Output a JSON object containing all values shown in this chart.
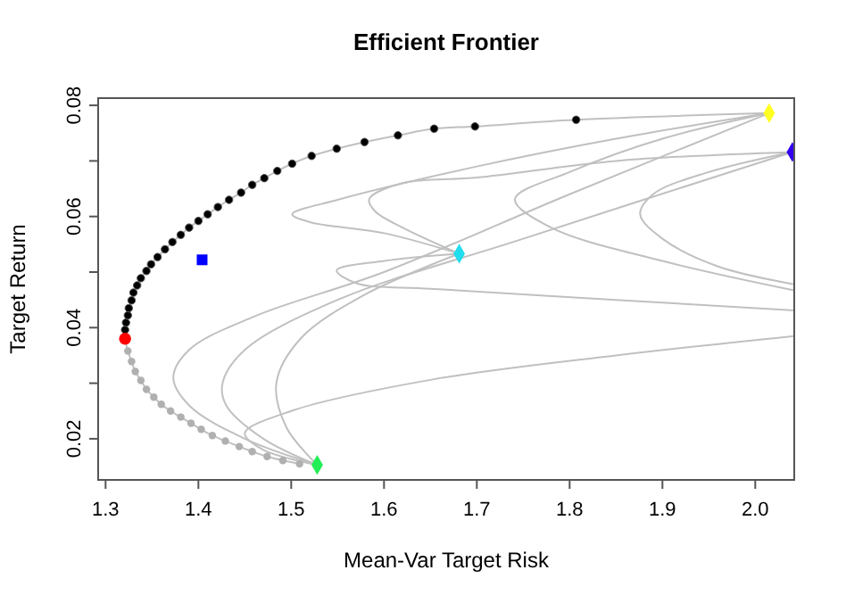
{
  "chart_data": {
    "type": "scatter",
    "title": "Efficient Frontier",
    "xlabel": "Mean-Var Target Risk",
    "ylabel": "Target Return",
    "xlim": [
      1.292,
      2.042
    ],
    "ylim": [
      0.0126,
      0.0813
    ],
    "xticks": [
      1.3,
      1.4,
      1.5,
      1.6,
      1.7,
      1.8,
      1.9,
      {
        "value": 2,
        "label": "2.0"
      }
    ],
    "yticks": [
      0.02,
      {
        "value": 0.03,
        "label": null
      },
      0.04,
      {
        "value": 0.05,
        "label": null
      },
      0.06,
      {
        "value": 0.07,
        "label": null
      },
      0.08
    ],
    "grid": false,
    "series": [
      {
        "type": "line",
        "color": "#c0c0c0",
        "marker": "none",
        "x": [
          1.528,
          1.45,
          1.39,
          1.373,
          1.39,
          1.46,
          1.6,
          1.8,
          2.015
        ],
        "values": [
          0.0153,
          0.02,
          0.026,
          0.031,
          0.036,
          0.042,
          0.05,
          0.064,
          0.0786
        ]
      },
      {
        "type": "line",
        "color": "#c0c0c0",
        "marker": "none",
        "x": [
          1.528,
          1.47,
          1.43,
          1.426,
          1.45,
          1.55,
          1.75,
          2.04
        ],
        "values": [
          0.0153,
          0.02,
          0.026,
          0.03,
          0.036,
          0.045,
          0.056,
          0.0716
        ]
      },
      {
        "type": "line",
        "color": "#c0c0c0",
        "marker": "none",
        "x": [
          1.528,
          1.495,
          1.484,
          1.51,
          1.58,
          1.681
        ],
        "values": [
          0.0153,
          0.022,
          0.03,
          0.038,
          0.046,
          0.0533
        ]
      },
      {
        "type": "line",
        "color": "#c0c0c0",
        "marker": "none",
        "x": [
          1.528,
          1.47,
          1.45,
          1.5,
          1.65,
          1.85,
          2.042
        ],
        "values": [
          0.0153,
          0.018,
          0.021,
          0.025,
          0.0306,
          0.035,
          0.0385
        ]
      },
      {
        "type": "line",
        "color": "#c0c0c0",
        "marker": "none",
        "x": [
          1.681,
          1.6,
          1.549,
          1.57,
          1.65,
          1.85,
          2.042
        ],
        "values": [
          0.0533,
          0.052,
          0.0503,
          0.048,
          0.047,
          0.045,
          0.0431
        ]
      },
      {
        "type": "line",
        "color": "#c0c0c0",
        "marker": "none",
        "x": [
          1.681,
          1.6,
          1.52,
          1.501,
          1.55,
          1.7,
          1.85,
          2.015
        ],
        "values": [
          0.0533,
          0.057,
          0.059,
          0.0604,
          0.063,
          0.069,
          0.074,
          0.0786
        ]
      },
      {
        "type": "line",
        "color": "#c0c0c0",
        "marker": "none",
        "x": [
          1.681,
          1.62,
          1.59,
          1.584,
          1.62,
          1.7,
          1.85,
          2.04
        ],
        "values": [
          0.0533,
          0.058,
          0.061,
          0.0631,
          0.066,
          0.067,
          0.07,
          0.0716
        ]
      },
      {
        "type": "line",
        "color": "#c0c0c0",
        "marker": "none",
        "x": [
          2.015,
          1.9,
          1.8,
          1.741,
          1.78,
          1.9,
          2.042
        ],
        "values": [
          0.0786,
          0.074,
          0.068,
          0.0631,
          0.058,
          0.052,
          0.0467
        ]
      },
      {
        "type": "line",
        "color": "#c0c0c0",
        "marker": "none",
        "x": [
          2.04,
          1.95,
          1.89,
          1.876,
          1.9,
          1.96,
          2.042
        ],
        "values": [
          0.0716,
          0.068,
          0.064,
          0.0604,
          0.056,
          0.051,
          0.0478
        ]
      },
      {
        "type": "line",
        "color": "#c0c0c0",
        "marker": "none",
        "x": [
          1.509,
          1.491,
          1.474,
          1.458,
          1.444,
          1.429,
          1.415,
          1.403,
          1.392,
          1.381,
          1.37,
          1.36,
          1.352,
          1.344,
          1.338,
          1.332,
          1.328,
          1.324,
          1.321,
          1.321,
          1.322,
          1.324,
          1.325,
          1.328,
          1.33,
          1.334,
          1.338,
          1.344,
          1.349,
          1.356,
          1.364,
          1.372,
          1.381,
          1.39,
          1.4,
          1.41,
          1.421,
          1.433,
          1.446,
          1.458,
          1.471,
          1.485,
          1.501,
          1.522,
          1.549,
          1.579,
          1.615,
          1.654,
          1.698,
          1.807,
          2.015
        ],
        "values": [
          0.0155,
          0.0161,
          0.0168,
          0.0177,
          0.0186,
          0.0196,
          0.0206,
          0.0217,
          0.0228,
          0.0239,
          0.025,
          0.0262,
          0.0275,
          0.0289,
          0.0305,
          0.0321,
          0.0339,
          0.0358,
          0.038,
          0.0396,
          0.0409,
          0.0422,
          0.0435,
          0.0449,
          0.0463,
          0.0476,
          0.0489,
          0.0502,
          0.0514,
          0.0527,
          0.0541,
          0.0554,
          0.0567,
          0.058,
          0.0592,
          0.0604,
          0.0617,
          0.063,
          0.0643,
          0.0657,
          0.0669,
          0.0682,
          0.0695,
          0.0709,
          0.0722,
          0.0734,
          0.0746,
          0.0758,
          0.0762,
          0.0774,
          0.0786
        ]
      },
      {
        "color": "#b0b0b0",
        "marker": "circle",
        "x": [
          1.509,
          1.491,
          1.474,
          1.458,
          1.444,
          1.429,
          1.415,
          1.403,
          1.392,
          1.381,
          1.37,
          1.36,
          1.352,
          1.344,
          1.338,
          1.332,
          1.328,
          1.324
        ],
        "values": [
          0.0155,
          0.0161,
          0.0168,
          0.0177,
          0.0186,
          0.0196,
          0.0206,
          0.0217,
          0.0228,
          0.0239,
          0.025,
          0.0262,
          0.0275,
          0.0289,
          0.0305,
          0.0321,
          0.0339,
          0.0358
        ]
      },
      {
        "color": "#000000",
        "marker": "circle",
        "x": [
          1.321,
          1.322,
          1.324,
          1.325,
          1.328,
          1.33,
          1.334,
          1.338,
          1.344,
          1.349,
          1.356,
          1.364,
          1.372,
          1.381,
          1.39,
          1.4,
          1.41,
          1.421,
          1.433,
          1.446,
          1.458,
          1.471,
          1.485,
          1.501,
          1.522,
          1.549,
          1.579,
          1.615,
          1.654,
          1.698,
          1.807
        ],
        "values": [
          0.0396,
          0.0409,
          0.0422,
          0.0435,
          0.0449,
          0.0463,
          0.0476,
          0.0489,
          0.0502,
          0.0514,
          0.0527,
          0.0541,
          0.0554,
          0.0567,
          0.058,
          0.0592,
          0.0604,
          0.0617,
          0.063,
          0.0643,
          0.0657,
          0.0669,
          0.0682,
          0.0695,
          0.0709,
          0.0722,
          0.0734,
          0.0746,
          0.0758,
          0.0762,
          0.0774
        ]
      },
      {
        "color": "#ff0000",
        "marker": "circle",
        "x": [
          1.321
        ],
        "values": [
          0.038
        ]
      },
      {
        "color": "#0000ff",
        "marker": "square",
        "x": [
          1.404
        ],
        "values": [
          0.0522
        ]
      },
      {
        "color": "#22ee55",
        "marker": "diamond",
        "x": [
          1.528
        ],
        "values": [
          0.0153
        ]
      },
      {
        "color": "#22ddee",
        "marker": "diamond",
        "x": [
          1.681
        ],
        "values": [
          0.0533
        ]
      },
      {
        "color": "#ffff22",
        "marker": "diamond",
        "x": [
          2.015
        ],
        "values": [
          0.0786
        ]
      },
      {
        "color": "#3300ee",
        "marker": "diamond",
        "x": [
          2.04
        ],
        "values": [
          0.0716
        ]
      }
    ]
  }
}
